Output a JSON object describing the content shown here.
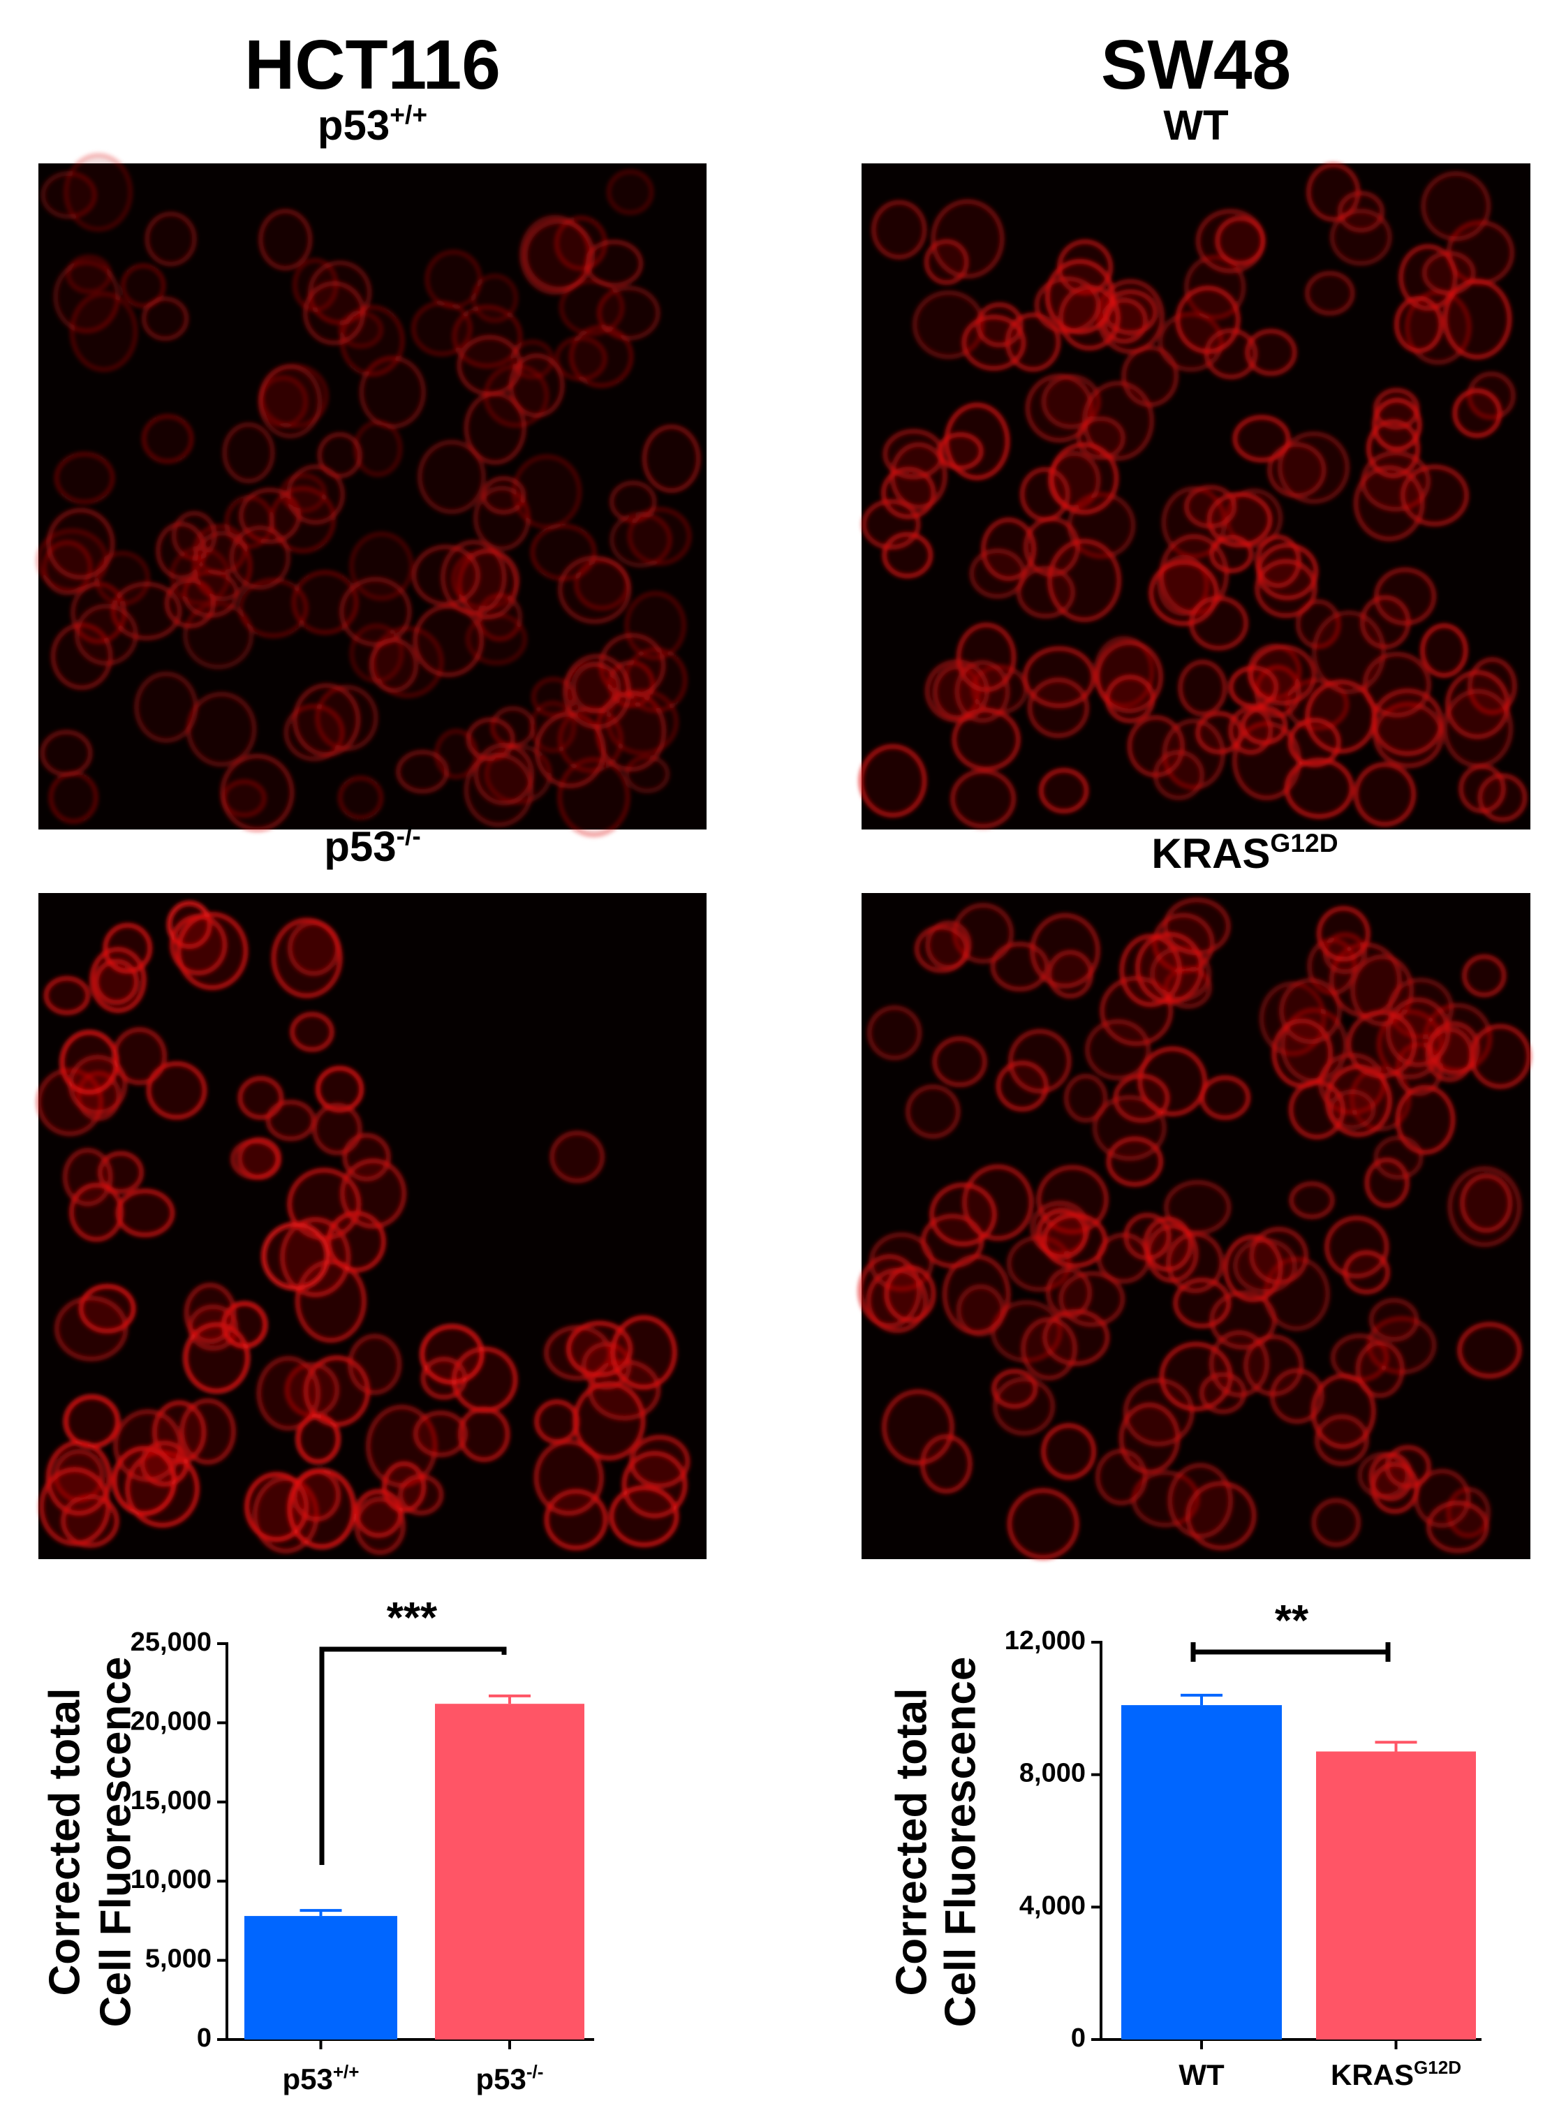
{
  "panels": [
    {
      "title": "HCT116",
      "images": [
        {
          "label": "p53",
          "sup": "+/+"
        },
        {
          "label": "p53",
          "sup": "-/-"
        }
      ]
    },
    {
      "title": "SW48",
      "images": [
        {
          "label": "WT"
        },
        {
          "label": "KRAS",
          "sup": "G12D"
        }
      ]
    }
  ],
  "chart_data": [
    {
      "type": "bar",
      "y_label": [
        "Corrected total",
        "Cell Fluorescence"
      ],
      "categories": [
        "p53",
        "p53"
      ],
      "category_superscripts": [
        "+/+",
        "-/-"
      ],
      "colors": [
        "#0066ff",
        "#ff5566"
      ],
      "series": [
        {
          "values": [
            7800,
            21200
          ],
          "errors": [
            350,
            500
          ]
        }
      ],
      "ylim": [
        0,
        25000
      ],
      "yticks": [
        0,
        {
          "value": 5000,
          "label": "5,000"
        },
        {
          "value": 10000,
          "label": "10,000"
        },
        {
          "value": 15000,
          "label": "15,000"
        },
        {
          "value": 20000,
          "label": "20,000"
        },
        {
          "value": 25000,
          "label": "25,000"
        }
      ],
      "significance": "***"
    },
    {
      "type": "bar",
      "y_label": [
        "Corrected total",
        "Cell Fluorescence"
      ],
      "categories": [
        "WT",
        "KRAS"
      ],
      "category_superscripts": [
        null,
        "G12D"
      ],
      "colors": [
        "#0066ff",
        "#ff5566"
      ],
      "series": [
        {
          "values": [
            10100,
            8700
          ],
          "errors": [
            300,
            280
          ]
        }
      ],
      "ylim": [
        0,
        12000
      ],
      "yticks": [
        0,
        {
          "value": 4000,
          "label": "4,000"
        },
        {
          "value": 8000,
          "label": "8,000"
        },
        {
          "value": 12000,
          "label": "12,000"
        }
      ],
      "significance": "**"
    }
  ]
}
